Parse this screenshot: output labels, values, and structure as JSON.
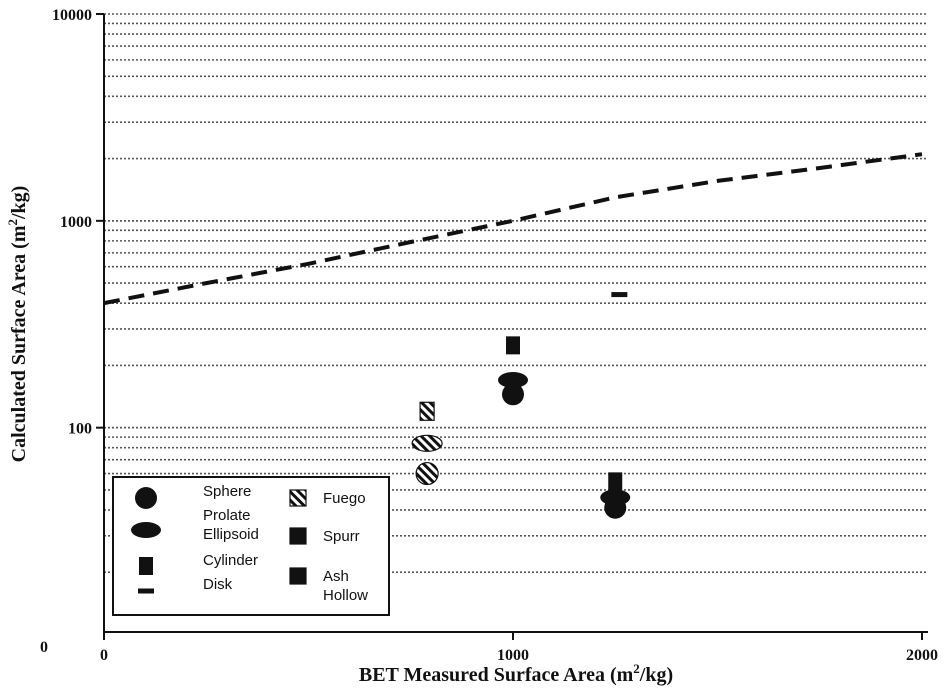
{
  "chart_data": {
    "type": "scatter",
    "xlabel": "BET Measured Surface Area (m",
    "xlabel_sup": "2",
    "xlabel_tail": "/kg)",
    "ylabel": "Calculated Surface Area (m",
    "ylabel_sup": "2",
    "ylabel_tail": "/kg)",
    "x_scale": "linear",
    "y_scale": "log",
    "xlim": [
      0,
      2000
    ],
    "ylim": [
      10,
      10000
    ],
    "x_ticks": [
      {
        "value": 0,
        "label": "0"
      },
      {
        "value": 1000,
        "label": "1000"
      },
      {
        "value": 2000,
        "label": "2000"
      }
    ],
    "y_ticks": [
      {
        "value": 100,
        "label": "100"
      },
      {
        "value": 1000,
        "label": "1000"
      },
      {
        "value": 10000,
        "label": "10000"
      }
    ],
    "origin_label": "0",
    "grid": "horizontal dotted at log minor ticks",
    "reference_line": {
      "style": "dashed",
      "x": [
        0,
        250,
        500,
        750,
        1000,
        1250,
        1500,
        1750,
        2000
      ],
      "y": [
        400,
        500,
        620,
        790,
        1000,
        1300,
        1560,
        1800,
        2100
      ]
    },
    "series": [
      {
        "name": "Fuego",
        "fill": "hatched",
        "points": [
          {
            "shape": "Cylinder",
            "x": 790,
            "y": 120
          },
          {
            "shape": "Prolate Ellipsoid",
            "x": 790,
            "y": 84
          },
          {
            "shape": "Sphere",
            "x": 790,
            "y": 60
          }
        ]
      },
      {
        "name": "Spurr",
        "fill": "solid",
        "points": [
          {
            "shape": "Cylinder",
            "x": 1000,
            "y": 250
          },
          {
            "shape": "Prolate Ellipsoid",
            "x": 1000,
            "y": 170
          },
          {
            "shape": "Sphere",
            "x": 1000,
            "y": 145
          }
        ]
      },
      {
        "name": "Ash Hollow",
        "fill": "solid",
        "points": [
          {
            "shape": "Disk",
            "x": 1260,
            "y": 440
          },
          {
            "shape": "Cylinder",
            "x": 1250,
            "y": 55
          },
          {
            "shape": "Prolate Ellipsoid",
            "x": 1250,
            "y": 46
          },
          {
            "shape": "Sphere",
            "x": 1250,
            "y": 41
          }
        ]
      }
    ],
    "legend": {
      "placement": "bottom-left",
      "shapes": [
        {
          "shape": "Sphere",
          "lines": [
            "Sphere"
          ]
        },
        {
          "shape": "Prolate Ellipsoid",
          "lines": [
            "Prolate",
            "Ellipsoid"
          ]
        },
        {
          "shape": "Cylinder",
          "lines": [
            "Cylinder"
          ]
        },
        {
          "shape": "Disk",
          "lines": [
            "Disk"
          ]
        }
      ],
      "materials": [
        {
          "fill": "hatched",
          "lines": [
            "Fuego"
          ]
        },
        {
          "fill": "solid",
          "lines": [
            "Spurr"
          ]
        },
        {
          "fill": "solid",
          "lines": [
            "Ash",
            "Hollow"
          ]
        }
      ]
    },
    "colors": {
      "ink": "#111111",
      "grid": "#555555"
    }
  }
}
